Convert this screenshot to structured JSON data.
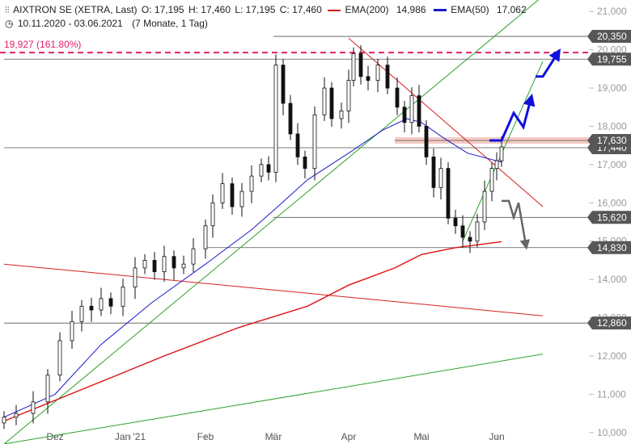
{
  "header": {
    "icon": "candlestick-icon",
    "title": "AIXTRON SE (XETRA, Last)",
    "open": "O: 17,195",
    "high": "H: 17,460",
    "low": "L: 17,195",
    "close": "C: 17,460",
    "ema200_label": "EMA(200)",
    "ema200_value": "14,986",
    "ema50_label": "EMA(50)",
    "ema50_value": "17,062",
    "range_icon": "clock-icon",
    "date_range": "10.11.2020 - 03.06.2021",
    "period": "(7 Monate, 1 Tag)"
  },
  "colors": {
    "ema200": "#dd1111",
    "ema50": "#1a1acc",
    "trend_green": "#2ea02e",
    "trend_red": "#d22222",
    "fib": "#e0206a",
    "arrow_blue": "#1010dd",
    "arrow_gray": "#666666",
    "resistance_zone": "#f2b8b0"
  },
  "chart_data": {
    "type": "candlestick",
    "instrument": "AIXTRON SE (XETRA)",
    "ylim": [
      9700,
      21300
    ],
    "yticks": [
      "10,000",
      "11,000",
      "12,000",
      "13,000",
      "14,000",
      "15,000",
      "16,000",
      "17,000",
      "18,000",
      "19,000",
      "20,000",
      "21,000"
    ],
    "ytick_values": [
      10000,
      11000,
      12000,
      13000,
      14000,
      15000,
      16000,
      17000,
      18000,
      19000,
      20000,
      21000
    ],
    "xticks": [
      "Dez",
      "Jan '21",
      "Feb",
      "Mär",
      "Apr",
      "Mai",
      "Jun"
    ],
    "xtick_dates": [
      "2020-12-01",
      "2021-01-01",
      "2021-02-01",
      "2021-03-01",
      "2021-04-01",
      "2021-05-01",
      "2021-06-01"
    ],
    "start_date": "2020-11-10",
    "end_date": "2021-06-03",
    "fib_level": {
      "value": 19927,
      "label": "19,927 (161.80%)"
    },
    "horizontal_levels": [
      {
        "value": 20350,
        "label": "20,350",
        "from": "2021-03-01"
      },
      {
        "value": 19755,
        "label": "19,755",
        "from": "2020-11-10"
      },
      {
        "value": 17630,
        "label": "17,630",
        "from": "2021-04-20",
        "zone": true
      },
      {
        "value": 17440,
        "label": "17,440",
        "from": "2020-11-10"
      },
      {
        "value": 15620,
        "label": "15,620",
        "from": "2021-03-01"
      },
      {
        "value": 14830,
        "label": "14,830",
        "from": "2021-02-01"
      },
      {
        "value": 12860,
        "label": "12,860",
        "from": "2020-11-10"
      }
    ],
    "trendlines": [
      {
        "color": "green",
        "points": [
          [
            "2020-11-10",
            9700
          ],
          [
            "2021-06-20",
            21400
          ]
        ]
      },
      {
        "color": "green",
        "points": [
          [
            "2020-11-10",
            9700
          ],
          [
            "2021-06-20",
            12050
          ]
        ]
      },
      {
        "color": "green",
        "points": [
          [
            "2021-05-18",
            15000
          ],
          [
            "2021-06-20",
            19700
          ]
        ]
      },
      {
        "color": "red",
        "points": [
          [
            "2020-11-10",
            14400
          ],
          [
            "2021-06-20",
            13050
          ]
        ]
      },
      {
        "color": "red",
        "points": [
          [
            "2021-04-01",
            20300
          ],
          [
            "2021-06-20",
            15900
          ]
        ]
      }
    ],
    "ema200": [
      [
        "2020-11-10",
        10300
      ],
      [
        "2020-12-15",
        11200
      ],
      [
        "2021-01-15",
        12000
      ],
      [
        "2021-02-15",
        12750
      ],
      [
        "2021-03-15",
        13300
      ],
      [
        "2021-04-01",
        13850
      ],
      [
        "2021-04-20",
        14300
      ],
      [
        "2021-05-01",
        14650
      ],
      [
        "2021-05-15",
        14830
      ],
      [
        "2021-06-03",
        14986
      ]
    ],
    "ema50": [
      [
        "2020-11-10",
        10400
      ],
      [
        "2020-12-01",
        11000
      ],
      [
        "2020-12-20",
        12300
      ],
      [
        "2021-01-10",
        13400
      ],
      [
        "2021-02-01",
        14400
      ],
      [
        "2021-02-20",
        15300
      ],
      [
        "2021-03-01",
        15800
      ],
      [
        "2021-03-15",
        16600
      ],
      [
        "2021-04-01",
        17300
      ],
      [
        "2021-04-15",
        17900
      ],
      [
        "2021-04-25",
        18200
      ],
      [
        "2021-05-01",
        18100
      ],
      [
        "2021-05-10",
        17700
      ],
      [
        "2021-05-20",
        17300
      ],
      [
        "2021-06-03",
        17062
      ]
    ],
    "closes": [
      [
        "2020-11-10",
        10400
      ],
      [
        "2020-11-15",
        10500
      ],
      [
        "2020-11-22",
        10800
      ],
      [
        "2020-11-28",
        11500
      ],
      [
        "2020-12-03",
        12400
      ],
      [
        "2020-12-08",
        12900
      ],
      [
        "2020-12-12",
        13300
      ],
      [
        "2020-12-16",
        13200
      ],
      [
        "2020-12-20",
        13500
      ],
      [
        "2020-12-24",
        13300
      ],
      [
        "2020-12-29",
        13800
      ],
      [
        "2021-01-03",
        14300
      ],
      [
        "2021-01-07",
        14500
      ],
      [
        "2021-01-11",
        14200
      ],
      [
        "2021-01-15",
        14600
      ],
      [
        "2021-01-19",
        14300
      ],
      [
        "2021-01-23",
        14400
      ],
      [
        "2021-01-27",
        14800
      ],
      [
        "2021-02-01",
        15400
      ],
      [
        "2021-02-04",
        16000
      ],
      [
        "2021-02-08",
        16500
      ],
      [
        "2021-02-12",
        15900
      ],
      [
        "2021-02-16",
        16300
      ],
      [
        "2021-02-20",
        16700
      ],
      [
        "2021-02-24",
        17000
      ],
      [
        "2021-02-27",
        16800
      ],
      [
        "2021-03-02",
        19600
      ],
      [
        "2021-03-05",
        18600
      ],
      [
        "2021-03-08",
        17800
      ],
      [
        "2021-03-11",
        17200
      ],
      [
        "2021-03-14",
        16900
      ],
      [
        "2021-03-18",
        18300
      ],
      [
        "2021-03-22",
        19000
      ],
      [
        "2021-03-25",
        18200
      ],
      [
        "2021-03-29",
        18400
      ],
      [
        "2021-04-01",
        19200
      ],
      [
        "2021-04-03",
        19900
      ],
      [
        "2021-04-06",
        19300
      ],
      [
        "2021-04-09",
        19200
      ],
      [
        "2021-04-13",
        19600
      ],
      [
        "2021-04-17",
        19000
      ],
      [
        "2021-04-21",
        18500
      ],
      [
        "2021-04-24",
        18100
      ],
      [
        "2021-04-27",
        18800
      ],
      [
        "2021-04-30",
        18000
      ],
      [
        "2021-05-03",
        17200
      ],
      [
        "2021-05-06",
        16400
      ],
      [
        "2021-05-09",
        16900
      ],
      [
        "2021-05-12",
        15600
      ],
      [
        "2021-05-15",
        15400
      ],
      [
        "2021-05-18",
        15100
      ],
      [
        "2021-05-21",
        15000
      ],
      [
        "2021-05-24",
        15500
      ],
      [
        "2021-05-27",
        16300
      ],
      [
        "2021-05-30",
        16900
      ],
      [
        "2021-06-01",
        17100
      ],
      [
        "2021-06-03",
        17460
      ]
    ],
    "scenario_arrows": [
      {
        "color": "blue",
        "points": [
          [
            "2021-05-29",
            17630
          ],
          [
            "2021-06-03",
            17630
          ],
          [
            "2021-06-08",
            18350
          ],
          [
            "2021-06-12",
            17980
          ],
          [
            "2021-06-15",
            18700
          ]
        ]
      },
      {
        "color": "blue",
        "points": [
          [
            "2021-06-17",
            19300
          ],
          [
            "2021-06-20",
            19300
          ],
          [
            "2021-06-26",
            19900
          ]
        ]
      },
      {
        "color": "gray",
        "points": [
          [
            "2021-06-03",
            16050
          ],
          [
            "2021-06-06",
            16050
          ],
          [
            "2021-06-08",
            15620
          ],
          [
            "2021-06-10",
            16000
          ],
          [
            "2021-06-13",
            14900
          ]
        ]
      }
    ]
  }
}
